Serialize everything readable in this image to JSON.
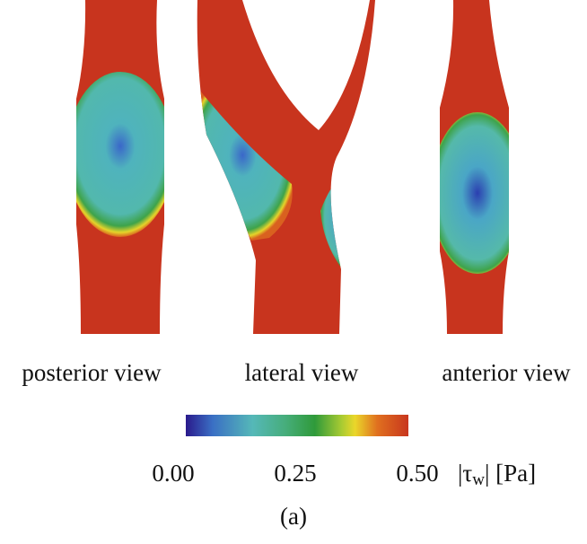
{
  "views": [
    {
      "label": "posterior view"
    },
    {
      "label": "lateral view"
    },
    {
      "label": "anterior view"
    }
  ],
  "colorbar": {
    "ticks": [
      {
        "value": 0,
        "label": "0.00"
      },
      {
        "value": 0.25,
        "label": "0.25"
      },
      {
        "value": 0.5,
        "label": "0.50"
      }
    ],
    "label": {
      "open": "|τ",
      "subscript": "w",
      "close": "| [Pa]"
    }
  },
  "caption": "(a)"
}
